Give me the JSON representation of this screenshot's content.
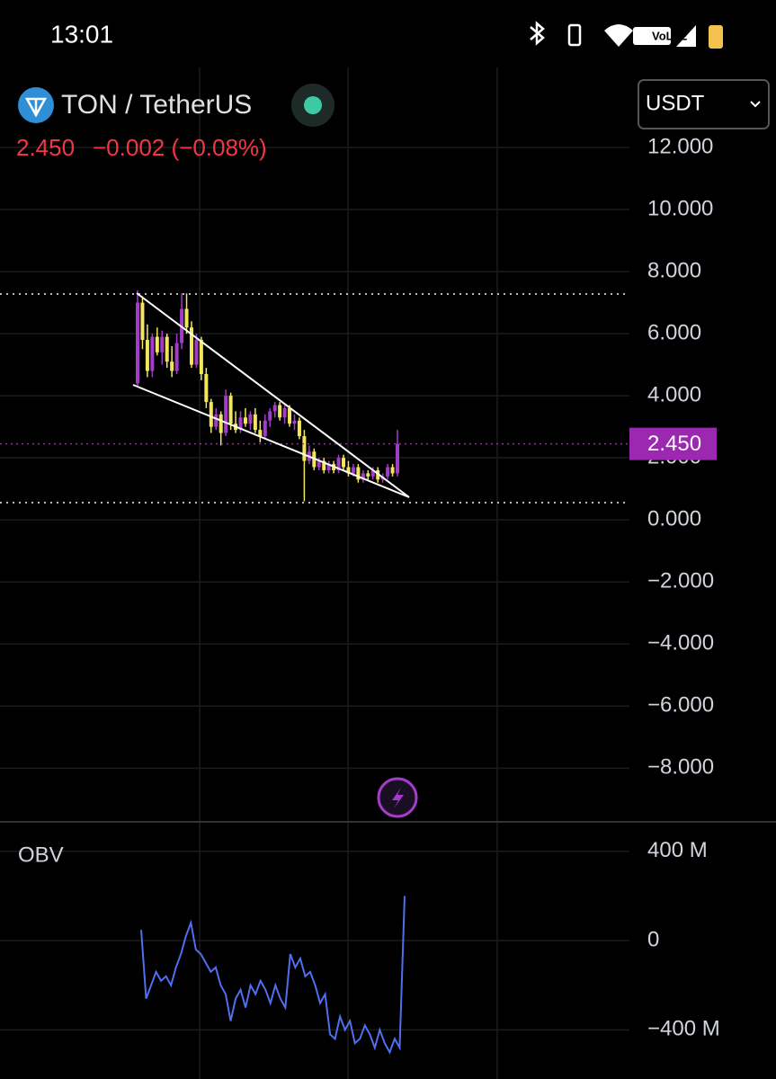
{
  "status_bar": {
    "time": "13:01",
    "network": "VoLTE"
  },
  "header": {
    "symbol": "TON / TetherUS",
    "price": "2.450",
    "change": "−0.002 (−0.08%)",
    "currency": "USDT"
  },
  "chart_data": [
    {
      "type": "candlestick",
      "ylim": [
        -9.7,
        14
      ],
      "yticks": [
        {
          "value": 12,
          "label": "12.000"
        },
        {
          "value": 10,
          "label": "10.000"
        },
        {
          "value": 8,
          "label": "8.000"
        },
        {
          "value": 6,
          "label": "6.000"
        },
        {
          "value": 4,
          "label": "4.000"
        },
        {
          "value": 2,
          "label": "2.000"
        },
        {
          "value": 0,
          "label": "0.000"
        },
        {
          "value": -2,
          "label": "−2.000"
        },
        {
          "value": -4,
          "label": "−4.000"
        },
        {
          "value": -6,
          "label": "−6.000"
        },
        {
          "value": -8,
          "label": "−8.000"
        }
      ],
      "up_color": "#a23cc9",
      "down_color": "#f2e65a",
      "open": [
        4.4,
        7.0,
        5.8,
        4.8,
        5.9,
        5.4,
        5.9,
        5.1,
        4.8,
        5.7,
        6.8,
        6.2,
        5.0,
        5.8,
        4.7,
        3.8,
        3.0,
        3.4,
        2.8,
        4.0,
        3.1,
        2.9,
        3.3,
        3.1,
        3.4,
        2.9,
        2.7,
        3.2,
        3.5,
        3.7,
        3.3,
        3.6,
        3.1,
        3.2,
        2.7,
        1.9,
        2.2,
        1.7,
        1.9,
        1.6,
        1.8,
        1.6,
        2.0,
        1.7,
        1.5,
        1.7,
        1.3,
        1.5,
        1.4,
        1.6,
        1.3,
        1.4,
        1.7,
        1.5
      ],
      "high": [
        7.4,
        7.2,
        6.3,
        6.0,
        6.2,
        6.1,
        6.0,
        5.6,
        6.0,
        7.3,
        7.3,
        6.4,
        6.0,
        5.9,
        4.9,
        3.9,
        3.6,
        3.5,
        4.2,
        4.1,
        3.5,
        3.5,
        3.6,
        3.5,
        3.6,
        3.2,
        3.4,
        3.6,
        3.8,
        3.8,
        3.7,
        3.7,
        3.4,
        3.3,
        2.9,
        2.4,
        2.3,
        2.0,
        2.0,
        1.9,
        1.9,
        2.1,
        2.1,
        1.9,
        1.8,
        1.8,
        1.6,
        1.6,
        1.7,
        1.7,
        1.5,
        1.8,
        1.8,
        2.9
      ],
      "low": [
        4.3,
        5.5,
        4.6,
        4.6,
        5.3,
        5.0,
        4.9,
        4.6,
        4.7,
        5.5,
        6.0,
        4.9,
        4.9,
        4.5,
        3.6,
        2.8,
        2.9,
        2.4,
        2.7,
        2.9,
        2.8,
        2.8,
        3.0,
        2.9,
        2.8,
        2.5,
        2.6,
        3.0,
        3.3,
        3.2,
        3.1,
        3.0,
        2.9,
        2.6,
        0.6,
        1.8,
        1.6,
        1.6,
        1.5,
        1.5,
        1.5,
        1.5,
        1.6,
        1.4,
        1.4,
        1.2,
        1.2,
        1.3,
        1.3,
        1.2,
        1.2,
        1.3,
        1.4,
        1.4
      ],
      "close": [
        7.0,
        5.8,
        4.8,
        5.9,
        5.4,
        5.9,
        5.1,
        4.8,
        5.7,
        6.8,
        6.2,
        5.0,
        5.8,
        4.7,
        3.8,
        3.0,
        3.4,
        2.8,
        4.0,
        3.1,
        2.9,
        3.3,
        3.1,
        3.4,
        2.9,
        2.7,
        3.2,
        3.5,
        3.7,
        3.3,
        3.6,
        3.1,
        3.2,
        2.7,
        1.9,
        2.2,
        1.7,
        1.9,
        1.6,
        1.8,
        1.6,
        2.0,
        1.7,
        1.5,
        1.7,
        1.3,
        1.5,
        1.4,
        1.6,
        1.3,
        1.4,
        1.7,
        1.5,
        2.45
      ],
      "last_price": {
        "value": 2.45,
        "label": "2.450"
      },
      "last_color": "#9c27b0",
      "grid": true
    },
    {
      "type": "line",
      "title": "OBV",
      "ylim": [
        -620,
        528
      ],
      "yticks": [
        {
          "value": 400,
          "label": "400 M"
        },
        0,
        {
          "value": -400,
          "label": "−400 M"
        }
      ],
      "series": [
        {
          "color": "#4f6ff0",
          "values": [
            48,
            -260,
            -200,
            -140,
            -180,
            -160,
            -200,
            -120,
            -60,
            20,
            80,
            -40,
            -60,
            -100,
            -140,
            -120,
            -200,
            -240,
            -360,
            -260,
            -220,
            -300,
            -200,
            -240,
            -180,
            -220,
            -280,
            -200,
            -260,
            -300,
            -60,
            -120,
            -80,
            -160,
            -140,
            -200,
            -280,
            -240,
            -420,
            -440,
            -340,
            -400,
            -360,
            -460,
            -440,
            -380,
            -420,
            -480,
            -400,
            -460,
            -500,
            -440,
            -480,
            200
          ]
        }
      ],
      "grid": true
    }
  ]
}
